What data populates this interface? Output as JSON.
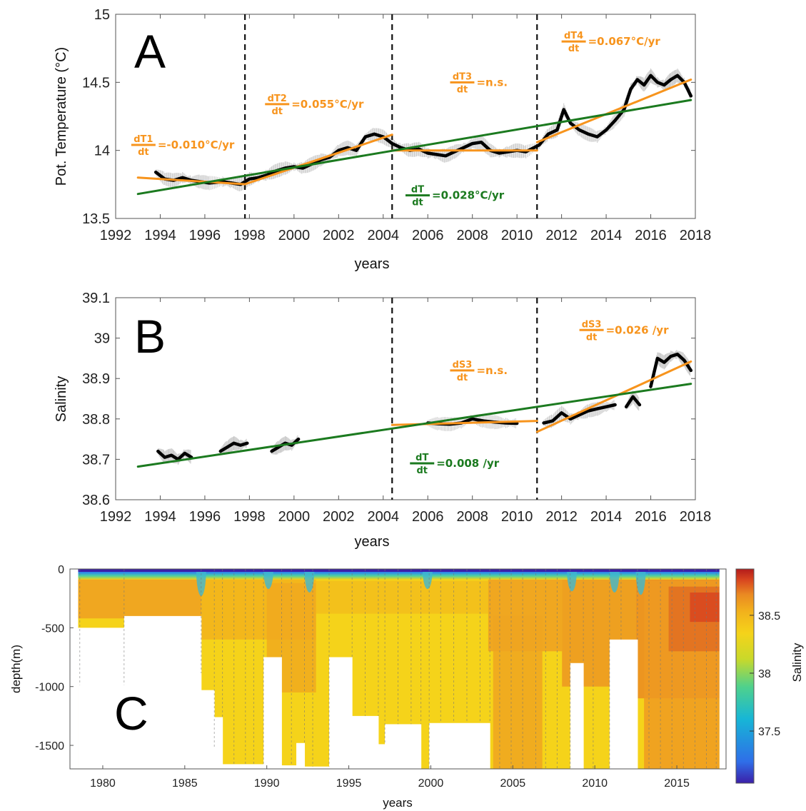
{
  "colors": {
    "orange": "#F7941D",
    "green": "#1B7A1F",
    "black": "#000000",
    "grey_raw": "#c8c8c8",
    "colormap": [
      "#3b1fa8",
      "#2f6ee8",
      "#17b6d6",
      "#4fd18c",
      "#c9d92a",
      "#f5d31a",
      "#f2b21c",
      "#ea8a22",
      "#d8451f",
      "#b31b1b"
    ]
  },
  "chart_data": [
    {
      "panel": "A",
      "type": "line",
      "ylabel": "Pot. Temperature (°C)",
      "xlabel": "years",
      "xlim": [
        1992,
        2018
      ],
      "ylim": [
        13.5,
        15
      ],
      "xticks": [
        "1992",
        "1994",
        "1996",
        "1998",
        "2000",
        "2002",
        "2004",
        "2006",
        "2008",
        "2010",
        "2012",
        "2014",
        "2016",
        "2018"
      ],
      "yticks": [
        "13.5",
        "14",
        "14.5",
        "15"
      ],
      "breakpoints": [
        1997.8,
        2004.4,
        2010.9
      ],
      "series": [
        {
          "color": "black",
          "x": [
            1993.8,
            1994.2,
            1994.6,
            1995.0,
            1995.4,
            1995.8,
            1996.2,
            1996.8,
            1997.2,
            1997.6,
            1998.0,
            1998.4,
            1998.8,
            1999.2,
            1999.6,
            2000.0,
            2000.4,
            2000.8,
            2001.2,
            2001.6,
            2002.0,
            2002.4,
            2002.8,
            2003.2,
            2003.6,
            2004.0,
            2004.4,
            2004.8,
            2005.2,
            2005.6,
            2006.0,
            2006.4,
            2006.8,
            2007.2,
            2007.6,
            2008.0,
            2008.4,
            2008.8,
            2009.2,
            2009.6,
            2010.0,
            2010.4,
            2011.0,
            2011.4,
            2011.8,
            2012.1,
            2012.4,
            2012.8,
            2013.2,
            2013.6,
            2014.0,
            2014.4,
            2014.8,
            2015.1,
            2015.4,
            2015.7,
            2016.0,
            2016.3,
            2016.6,
            2016.9,
            2017.2,
            2017.5,
            2017.8
          ],
          "y": [
            13.84,
            13.79,
            13.78,
            13.8,
            13.78,
            13.77,
            13.76,
            13.77,
            13.76,
            13.75,
            13.79,
            13.8,
            13.82,
            13.85,
            13.87,
            13.88,
            13.87,
            13.9,
            13.93,
            13.95,
            14.0,
            14.02,
            14.0,
            14.1,
            14.12,
            14.1,
            14.05,
            14.02,
            14.0,
            14.01,
            13.98,
            13.97,
            13.96,
            13.99,
            14.02,
            14.05,
            14.06,
            14.0,
            13.98,
            13.99,
            14.0,
            13.99,
            14.04,
            14.12,
            14.15,
            14.3,
            14.2,
            14.15,
            14.12,
            14.1,
            14.15,
            14.22,
            14.3,
            14.45,
            14.52,
            14.48,
            14.55,
            14.5,
            14.48,
            14.52,
            14.55,
            14.5,
            14.4
          ]
        },
        {
          "color": "orange",
          "x": [
            1993.0,
            1997.8
          ],
          "y": [
            13.8,
            13.752
          ]
        },
        {
          "color": "orange",
          "x": [
            1997.8,
            2004.4
          ],
          "y": [
            13.752,
            14.115
          ]
        },
        {
          "color": "orange",
          "x": [
            2004.4,
            2010.9
          ],
          "y": [
            14.0,
            14.0
          ]
        },
        {
          "color": "orange",
          "x": [
            2010.9,
            2017.8
          ],
          "y": [
            14.06,
            14.52
          ]
        },
        {
          "color": "green",
          "x": [
            1993.0,
            2017.8
          ],
          "y": [
            13.68,
            14.37
          ]
        }
      ],
      "annotations": [
        {
          "color": "orange",
          "num": "dT1",
          "den": "dt",
          "rest": "=-0.010°C/yr",
          "x": 1992.7,
          "y": 14.04
        },
        {
          "color": "orange",
          "num": "dT2",
          "den": "dt",
          "rest": "=0.055°C/yr",
          "x": 1998.7,
          "y": 14.34
        },
        {
          "color": "orange",
          "num": "dT3",
          "den": "dt",
          "rest": "=n.s.",
          "x": 2007.0,
          "y": 14.5
        },
        {
          "color": "green",
          "num": "dT",
          "den": "dt",
          "rest": "=0.028°C/yr",
          "x": 2005.0,
          "y": 13.67
        },
        {
          "color": "orange",
          "num": "dT4",
          "den": "dt",
          "rest": "=0.067°C/yr",
          "x": 2012.0,
          "y": 14.8
        }
      ]
    },
    {
      "panel": "B",
      "type": "line",
      "ylabel": "Salinity",
      "xlabel": "years",
      "xlim": [
        1992,
        2018
      ],
      "ylim": [
        38.6,
        39.1
      ],
      "xticks": [
        "1992",
        "1994",
        "1996",
        "1998",
        "2000",
        "2002",
        "2004",
        "2006",
        "2008",
        "2010",
        "2012",
        "2014",
        "2016",
        "2018"
      ],
      "yticks": [
        "38.6",
        "38.7",
        "38.8",
        "38.9",
        "39",
        "39.1"
      ],
      "breakpoints": [
        2004.4,
        2010.9
      ],
      "series": [
        {
          "color": "black",
          "x": [
            1993.9,
            1994.2,
            1994.5,
            1994.8,
            1995.1,
            1995.4
          ],
          "y": [
            38.72,
            38.705,
            38.71,
            38.7,
            38.715,
            38.705
          ]
        },
        {
          "color": "black",
          "x": [
            1996.7,
            1997.0,
            1997.3,
            1997.6,
            1997.9
          ],
          "y": [
            38.72,
            38.73,
            38.74,
            38.735,
            38.74
          ]
        },
        {
          "color": "black",
          "x": [
            1999.0,
            1999.3,
            1999.6,
            1999.9,
            2000.2
          ],
          "y": [
            38.72,
            38.73,
            38.74,
            38.735,
            38.75
          ]
        },
        {
          "color": "black",
          "x": [
            2006.0,
            2006.5,
            2007.0,
            2007.5,
            2008.0,
            2008.5,
            2009.0,
            2009.5,
            2010.0
          ],
          "y": [
            38.79,
            38.788,
            38.787,
            38.79,
            38.8,
            38.795,
            38.792,
            38.79,
            38.789
          ]
        },
        {
          "color": "black",
          "x": [
            2011.2,
            2011.6,
            2012.0,
            2012.4,
            2012.8,
            2013.2,
            2013.6,
            2014.0,
            2014.4
          ],
          "y": [
            38.79,
            38.795,
            38.815,
            38.8,
            38.81,
            38.82,
            38.825,
            38.83,
            38.835
          ]
        },
        {
          "color": "black",
          "x": [
            2014.9,
            2015.2,
            2015.5
          ],
          "y": [
            38.83,
            38.855,
            38.835
          ]
        },
        {
          "color": "black",
          "x": [
            2016.0,
            2016.3,
            2016.6,
            2016.9,
            2017.2,
            2017.5,
            2017.8
          ],
          "y": [
            38.88,
            38.95,
            38.94,
            38.955,
            38.96,
            38.945,
            38.92
          ]
        },
        {
          "color": "orange",
          "x": [
            2004.4,
            2010.9
          ],
          "y": [
            38.785,
            38.795
          ]
        },
        {
          "color": "orange",
          "x": [
            2010.9,
            2017.8
          ],
          "y": [
            38.768,
            38.942
          ]
        },
        {
          "color": "green",
          "x": [
            1993.0,
            2017.8
          ],
          "y": [
            38.682,
            38.887
          ]
        }
      ],
      "annotations": [
        {
          "color": "orange",
          "num": "dS3",
          "den": "dt",
          "rest": "=n.s.",
          "x": 2007.0,
          "y": 38.92
        },
        {
          "color": "green",
          "num": "dT",
          "den": "dt",
          "rest": "=0.008 /yr",
          "x": 2005.2,
          "y": 38.69
        },
        {
          "color": "orange",
          "num": "dS3",
          "den": "dt",
          "rest": "=0.026 /yr",
          "x": 2012.8,
          "y": 39.02
        }
      ]
    },
    {
      "panel": "C",
      "type": "heatmap",
      "ylabel": "depth(m)",
      "xlabel": "years",
      "colorbar_label": "Salinity",
      "xlim": [
        1978,
        2018
      ],
      "ylim": [
        -1700,
        0
      ],
      "xticks": [
        "1980",
        "1985",
        "1990",
        "1995",
        "2000",
        "2005",
        "2010",
        "2015"
      ],
      "yticks": [
        "0",
        "-500",
        "-1000",
        "-1500"
      ],
      "colorbar_range": [
        37.05,
        38.9
      ],
      "colorbar_ticks": [
        "37.5",
        "38",
        "38.5"
      ],
      "max_depth_steps": [
        {
          "x0": 1978.5,
          "x1": 1981.3,
          "depth": -500
        },
        {
          "x0": 1981.3,
          "x1": 1986.0,
          "depth": -400
        },
        {
          "x0": 1986.0,
          "x1": 1986.8,
          "depth": -1030
        },
        {
          "x0": 1986.8,
          "x1": 1987.3,
          "depth": -1260
        },
        {
          "x0": 1987.3,
          "x1": 1989.8,
          "depth": -1660
        },
        {
          "x0": 1989.8,
          "x1": 1990.9,
          "depth": -750
        },
        {
          "x0": 1990.9,
          "x1": 1991.8,
          "depth": -1670
        },
        {
          "x0": 1991.8,
          "x1": 1992.3,
          "depth": -1480
        },
        {
          "x0": 1992.3,
          "x1": 1993.8,
          "depth": -1680
        },
        {
          "x0": 1993.8,
          "x1": 1995.2,
          "depth": -750
        },
        {
          "x0": 1995.2,
          "x1": 1996.8,
          "depth": -1250
        },
        {
          "x0": 1996.8,
          "x1": 1997.2,
          "depth": -1490
        },
        {
          "x0": 1997.2,
          "x1": 1999.4,
          "depth": -1320
        },
        {
          "x0": 1999.4,
          "x1": 1999.9,
          "depth": -1700
        },
        {
          "x0": 1999.9,
          "x1": 2003.6,
          "depth": -1310
        },
        {
          "x0": 2003.6,
          "x1": 2008.5,
          "depth": -1700
        },
        {
          "x0": 2008.5,
          "x1": 2009.3,
          "depth": -800
        },
        {
          "x0": 2009.3,
          "x1": 2010.9,
          "depth": -1700
        },
        {
          "x0": 2010.9,
          "x1": 2012.6,
          "depth": -600
        },
        {
          "x0": 2012.6,
          "x1": 2017.6,
          "depth": -1700
        }
      ],
      "cast_years": [
        1978.6,
        1981.3,
        1986.0,
        1986.8,
        1987.3,
        1988.0,
        1988.7,
        1989.2,
        1989.8,
        1990.9,
        1991.5,
        1992.3,
        1992.8,
        1993.8,
        1995.2,
        1996.0,
        1996.8,
        1997.2,
        1998.0,
        1998.8,
        1999.4,
        1999.9,
        2000.6,
        2001.4,
        2002.2,
        2003.0,
        2003.6,
        2004.2,
        2004.9,
        2005.6,
        2006.4,
        2007.0,
        2007.7,
        2008.5,
        2009.3,
        2009.9,
        2010.9,
        2011.6,
        2012.6,
        2013.3,
        2014.0,
        2014.7,
        2015.4,
        2016.1,
        2016.8,
        2017.4
      ]
    }
  ]
}
